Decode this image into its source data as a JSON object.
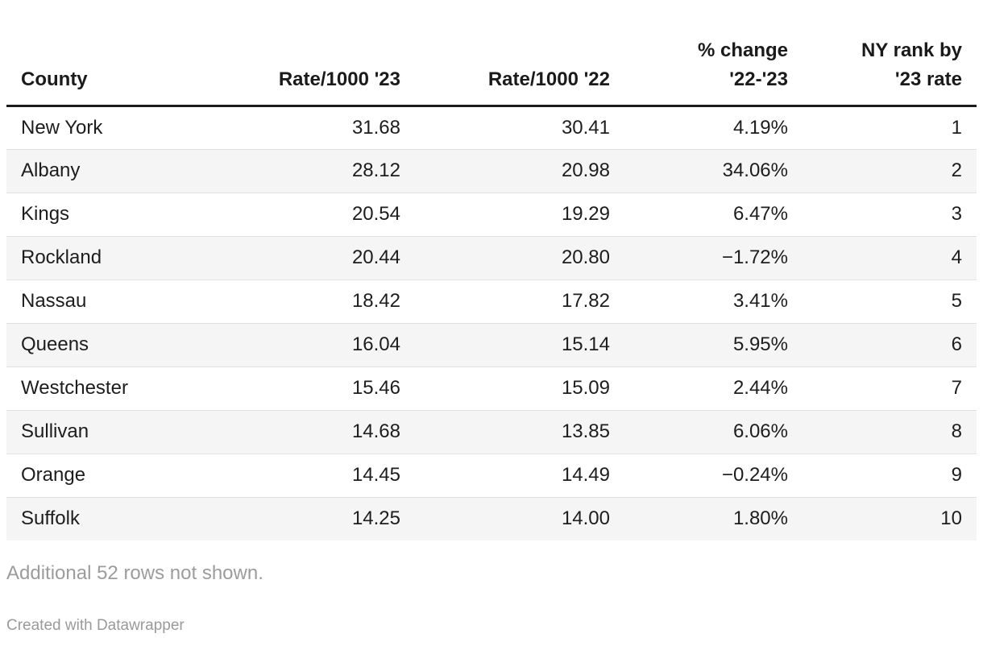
{
  "chart_data": {
    "type": "table",
    "columns": [
      {
        "label": "County",
        "align": "left"
      },
      {
        "label": "Rate/1000 '23",
        "align": "right"
      },
      {
        "label": "Rate/1000 '22",
        "align": "right"
      },
      {
        "label": "% change\n'22-'23",
        "align": "right"
      },
      {
        "label": "NY rank by\n'23 rate",
        "align": "right"
      }
    ],
    "rows": [
      [
        "New York",
        "31.68",
        "30.41",
        "4.19%",
        "1"
      ],
      [
        "Albany",
        "28.12",
        "20.98",
        "34.06%",
        "2"
      ],
      [
        "Kings",
        "20.54",
        "19.29",
        "6.47%",
        "3"
      ],
      [
        "Rockland",
        "20.44",
        "20.80",
        "−1.72%",
        "4"
      ],
      [
        "Nassau",
        "18.42",
        "17.82",
        "3.41%",
        "5"
      ],
      [
        "Queens",
        "16.04",
        "15.14",
        "5.95%",
        "6"
      ],
      [
        "Westchester",
        "15.46",
        "15.09",
        "2.44%",
        "7"
      ],
      [
        "Sullivan",
        "14.68",
        "13.85",
        "6.06%",
        "8"
      ],
      [
        "Orange",
        "14.45",
        "14.49",
        "−0.24%",
        "9"
      ],
      [
        "Suffolk",
        "14.25",
        "14.00",
        "1.80%",
        "10"
      ]
    ],
    "note": "Additional 52 rows not shown.",
    "attribution": "Created with Datawrapper",
    "layout_hints": {
      "striped_rows": "even rows shaded",
      "header_rule_color": "#1a1a1a",
      "stripe_color": "#f5f5f5",
      "divider_color": "#e1e1e1",
      "muted_text_color": "#9c9c9c"
    }
  }
}
